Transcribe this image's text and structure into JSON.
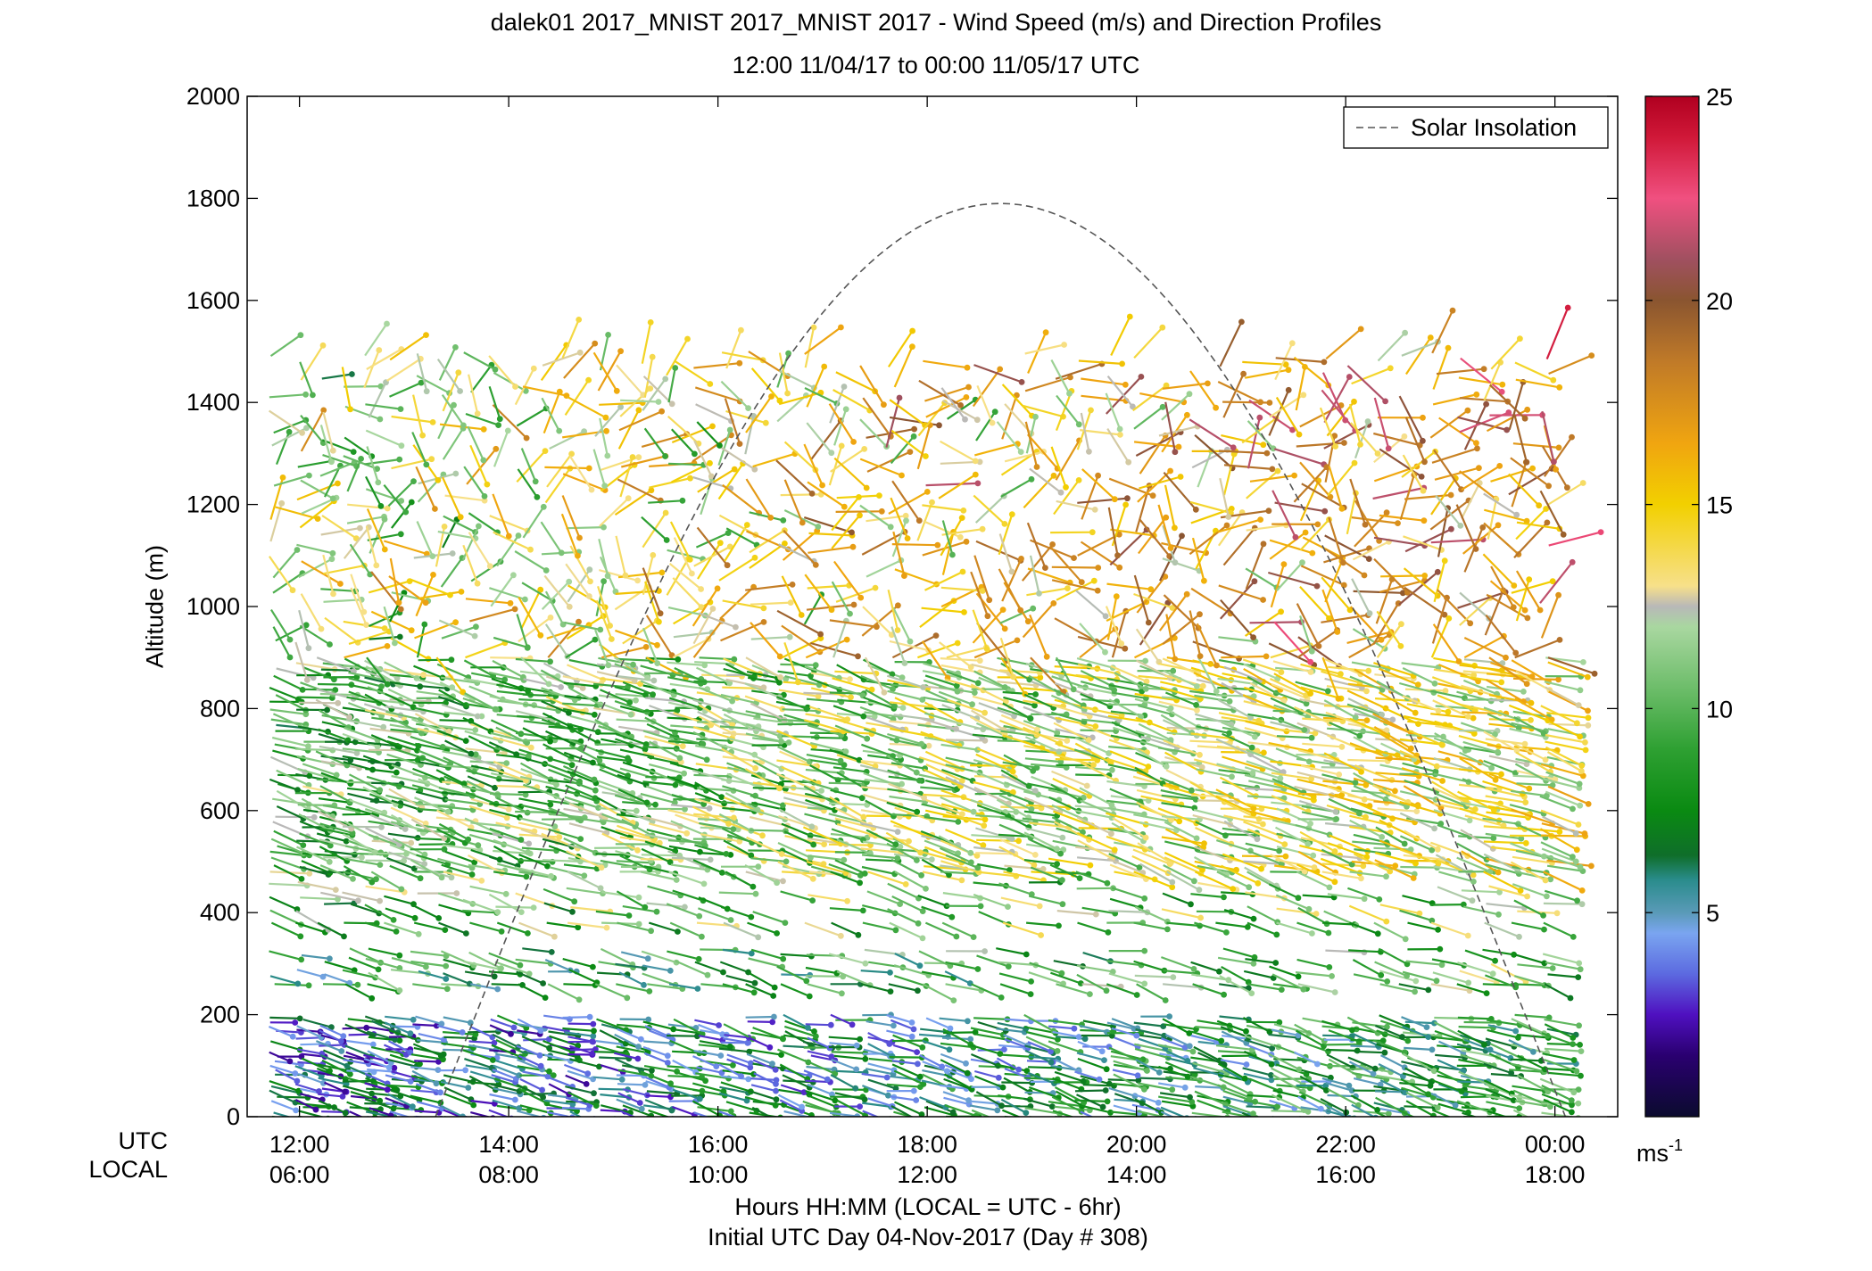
{
  "title_line1": "dalek01 2017_MNIST 2017_MNIST 2017 - Wind Speed (m/s) and Direction Profiles",
  "title_line2": "12:00 11/04/17 to 00:00 11/05/17  UTC",
  "xlabel_line1": "Hours HH:MM  (LOCAL = UTC - 6hr)",
  "xlabel_line2": "Initial UTC Day 04-Nov-2017 (Day # 308)",
  "row_label_utc": "UTC",
  "row_label_local": "LOCAL",
  "colorbar_unit": "ms",
  "colorbar_unit_exp": "-1",
  "chart_data": {
    "type": "scatter",
    "description_of_marks": "wind barbs: dot at observation point with a line pointing in wind direction, colored by speed",
    "ylabel": "Altitude (m)",
    "ylim": [
      0,
      2000
    ],
    "yticks": [
      0,
      200,
      400,
      600,
      800,
      1000,
      1200,
      1400,
      1600,
      1800,
      2000
    ],
    "xlim_hours_utc": [
      11.5,
      24.6
    ],
    "xticks_utc_hours": [
      12,
      14,
      16,
      18,
      20,
      22,
      24
    ],
    "xtick_labels_utc": [
      "12:00",
      "14:00",
      "16:00",
      "18:00",
      "20:00",
      "22:00",
      "00:00"
    ],
    "xtick_labels_local": [
      "06:00",
      "08:00",
      "10:00",
      "12:00",
      "14:00",
      "16:00",
      "18:00"
    ],
    "legend": {
      "label": "Solar Insolation",
      "placement": "top-right",
      "style": "dashed",
      "color": "#666666"
    },
    "solar_insolation": {
      "start_hour": 13.3,
      "peak_hour": 18.7,
      "end_hour": 24.1,
      "peak_altitude": 1790
    },
    "colorbar": {
      "min": 0,
      "max": 25,
      "ticks": [
        5,
        10,
        15,
        20,
        25
      ],
      "stops": [
        {
          "v": 0,
          "c": "#0b0b2e"
        },
        {
          "v": 1.5,
          "c": "#2a0070"
        },
        {
          "v": 2.5,
          "c": "#4f10c0"
        },
        {
          "v": 3.5,
          "c": "#5c6ae0"
        },
        {
          "v": 4.5,
          "c": "#7aa5f0"
        },
        {
          "v": 5.0,
          "c": "#5a9ab8"
        },
        {
          "v": 5.8,
          "c": "#2a8c8c"
        },
        {
          "v": 6.4,
          "c": "#0f6e2a"
        },
        {
          "v": 7.5,
          "c": "#0a8a12"
        },
        {
          "v": 9.0,
          "c": "#2ea032"
        },
        {
          "v": 10.5,
          "c": "#6dbd6a"
        },
        {
          "v": 12.0,
          "c": "#a9d7a0"
        },
        {
          "v": 12.5,
          "c": "#b8b8b8"
        },
        {
          "v": 13.0,
          "c": "#f7e08a"
        },
        {
          "v": 15.0,
          "c": "#f2d000"
        },
        {
          "v": 16.5,
          "c": "#f0a510"
        },
        {
          "v": 18.5,
          "c": "#c07a28"
        },
        {
          "v": 20.0,
          "c": "#8a5530"
        },
        {
          "v": 21.0,
          "c": "#a05060"
        },
        {
          "v": 22.5,
          "c": "#f05080"
        },
        {
          "v": 24.0,
          "c": "#d01838"
        },
        {
          "v": 25.0,
          "c": "#b00020"
        }
      ]
    },
    "profile_times_utc": [
      11.75,
      12.0,
      12.2,
      12.45,
      12.65,
      12.85,
      13.1,
      13.35,
      13.6,
      13.85,
      14.1,
      14.35,
      14.55,
      14.85,
      15.05,
      15.3,
      15.55,
      15.8,
      16.05,
      16.3,
      16.6,
      16.85,
      17.1,
      17.4,
      17.65,
      17.95,
      18.15,
      18.45,
      18.7,
      18.95,
      19.2,
      19.45,
      19.75,
      20.0,
      20.25,
      20.55,
      20.8,
      21.05,
      21.3,
      21.55,
      21.8,
      22.05,
      22.3,
      22.55,
      22.85,
      23.1,
      23.35,
      23.6,
      23.9
    ],
    "layers": [
      {
        "from": 0,
        "to": 200,
        "speed_early": 4.5,
        "speed_late": 8.5,
        "spacing": 10
      },
      {
        "from": 260,
        "to": 330,
        "speed_early": 8.0,
        "speed_late": 10.0,
        "spacing": 22
      },
      {
        "from": 380,
        "to": 460,
        "speed_early": 9.5,
        "speed_late": 11.0,
        "spacing": 30
      },
      {
        "from": 480,
        "to": 900,
        "speed_early": 9.5,
        "speed_late": 13.5,
        "spacing": 12
      },
      {
        "from": 900,
        "to": 1500,
        "speed_early": 12.0,
        "speed_late": 18.0,
        "spacing": 34
      }
    ]
  }
}
